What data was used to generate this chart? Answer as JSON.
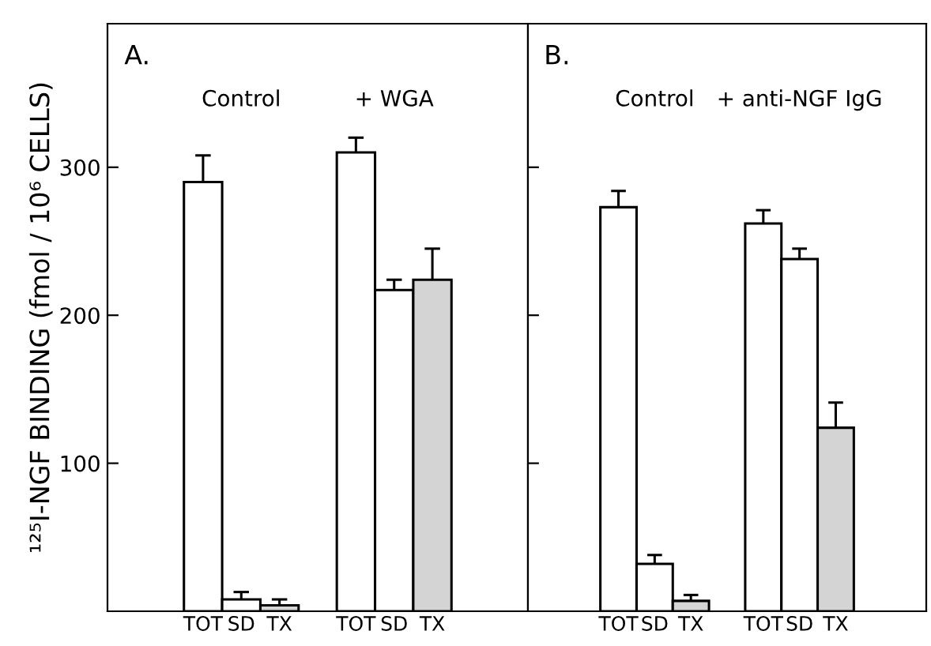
{
  "chart_data": [
    {
      "type": "bar",
      "title": "A.",
      "ylabel": "¹²⁵I-NGF BINDING (fmol / 10⁶ CELLS)",
      "categories": [
        null,
        null,
        "TOT",
        "SD",
        "TX",
        null,
        "TOT",
        "SD",
        "TX",
        null,
        null
      ],
      "values": [
        null,
        null,
        290,
        8,
        4,
        null,
        310,
        217,
        224,
        null,
        null
      ],
      "errors": [
        null,
        null,
        [
          290,
          308
        ],
        [
          8,
          13
        ],
        [
          4,
          8
        ],
        null,
        [
          310,
          320
        ],
        [
          217,
          224
        ],
        [
          224,
          245
        ],
        null,
        null
      ],
      "colors": [
        "#ffffff",
        "#ffffff",
        "#ffffff",
        "#ffffff",
        "#d4d4d4",
        "#ffffff",
        "#ffffff",
        "#ffffff",
        "#d4d4d4",
        "#ffffff",
        "#ffffff"
      ],
      "annotations": [
        "Control",
        "+ WGA"
      ],
      "ylim": [
        0,
        397
      ],
      "yticks": [
        100,
        200,
        300
      ],
      "grid": false,
      "legend": false
    },
    {
      "type": "bar",
      "title": "B.",
      "categories": [
        null,
        null,
        "TOT",
        "SD",
        "TX",
        null,
        "TOT",
        "SD",
        "TX",
        null,
        null
      ],
      "values": [
        null,
        null,
        273,
        32,
        7,
        null,
        262,
        238,
        124,
        null,
        null
      ],
      "errors": [
        null,
        null,
        [
          273,
          284
        ],
        [
          32,
          38
        ],
        [
          7,
          11
        ],
        null,
        [
          262,
          271
        ],
        [
          238,
          245
        ],
        [
          124,
          141
        ],
        null,
        null
      ],
      "colors": [
        "#ffffff",
        "#ffffff",
        "#ffffff",
        "#ffffff",
        "#d4d4d4",
        "#ffffff",
        "#ffffff",
        "#ffffff",
        "#d4d4d4",
        "#ffffff",
        "#ffffff"
      ],
      "annotations": [
        "Control",
        "+ anti-NGF IgG"
      ],
      "ylim": [
        0,
        397
      ],
      "yticks": [
        100,
        200,
        300
      ],
      "tick_labels": "x",
      "grid": false,
      "legend": false
    }
  ]
}
